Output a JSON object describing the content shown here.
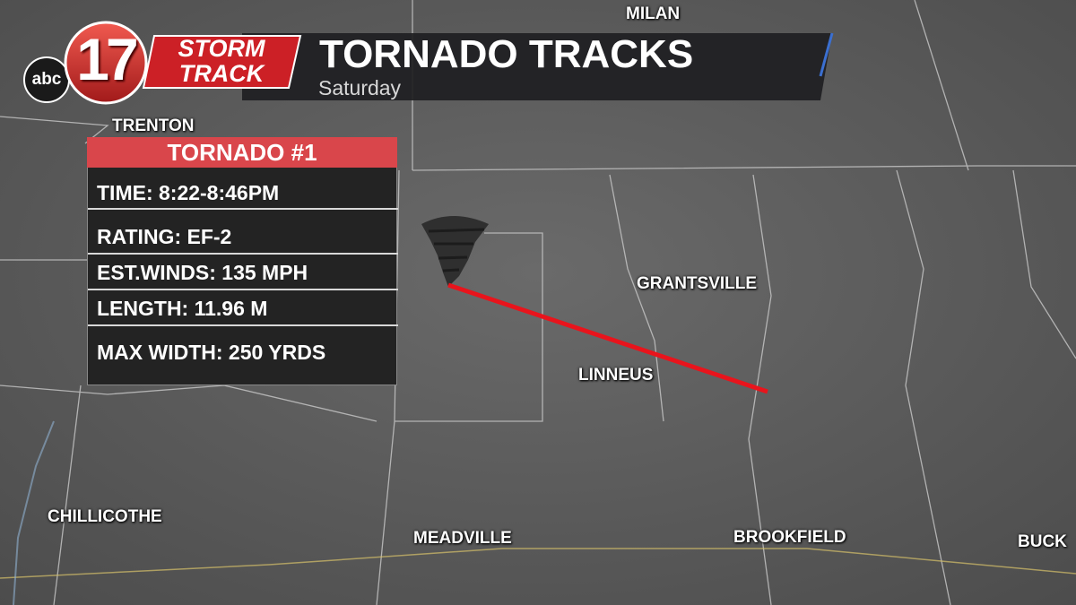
{
  "header": {
    "logo_network": "abc",
    "logo_channel": "17",
    "brand_line1": "STORM",
    "brand_line2": "TRACK",
    "title": "TORNADO TRACKS",
    "subtitle": "Saturday"
  },
  "panel": {
    "title": "TORNADO #1",
    "rows": [
      "TIME: 8:22-8:46PM",
      "RATING: EF-2",
      "EST.WINDS: 135 MPH",
      "LENGTH: 11.96 M",
      "MAX WIDTH: 250 YRDS"
    ]
  },
  "places": [
    "MILAN",
    "TRENTON",
    "GRANTSVILLE",
    "LINNEUS",
    "CHILLICOTHE",
    "MEADVILLE",
    "BROOKFIELD",
    "BUCK"
  ]
}
